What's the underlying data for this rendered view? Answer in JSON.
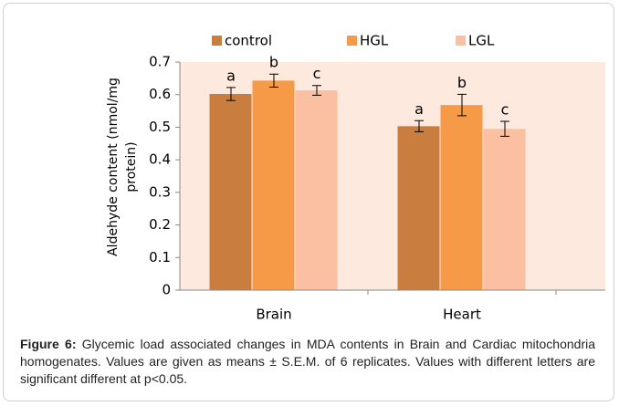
{
  "chart_data": {
    "type": "bar",
    "ylabel": [
      "Aldehyde content (nmol/mg",
      "protein)"
    ],
    "categories": [
      "Brain",
      "Heart"
    ],
    "series": [
      {
        "name": "control",
        "color": "#c97d3e",
        "values": [
          0.602,
          0.503
        ],
        "errors": [
          0.02,
          0.017
        ],
        "labels": [
          "a",
          "a"
        ]
      },
      {
        "name": "HGL",
        "color": "#f79a47",
        "values": [
          0.643,
          0.568
        ],
        "errors": [
          0.02,
          0.033
        ],
        "labels": [
          "b",
          "b"
        ]
      },
      {
        "name": "LGL",
        "color": "#fbbfa2",
        "values": [
          0.613,
          0.495
        ],
        "errors": [
          0.015,
          0.023
        ],
        "labels": [
          "c",
          "c"
        ]
      }
    ],
    "ylim": [
      0,
      0.7
    ],
    "yticks": [
      0,
      0.1,
      0.2,
      0.3,
      0.4,
      0.5,
      0.6,
      0.7
    ],
    "background": "#fde9dd"
  },
  "caption": {
    "label": "Figure 6:",
    "text": "Glycemic load associated changes in MDA contents in Brain and Cardiac mitochondria homogenates. Values are given as means ± S.E.M. of 6 replicates. Values with different letters are significant different at p<0.05."
  }
}
